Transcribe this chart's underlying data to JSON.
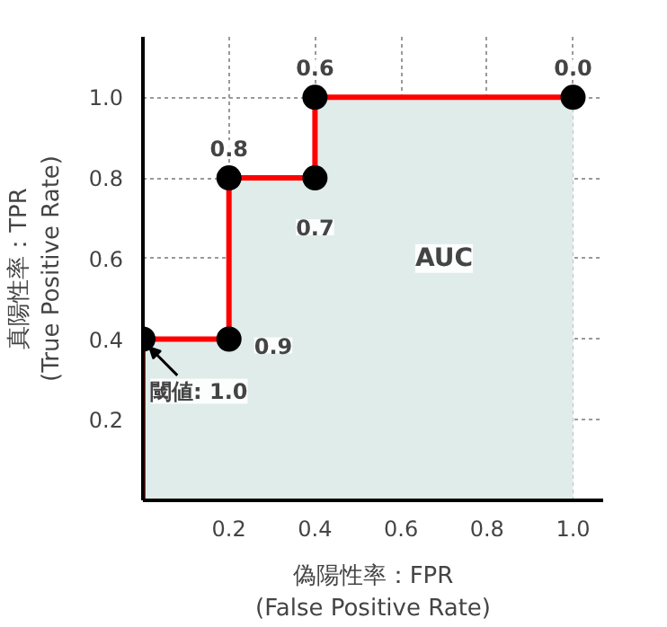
{
  "chart_data": {
    "type": "area",
    "xlabel": "偽陽性率：FPR\n(False Positive Rate)",
    "ylabel": "真陽性率：TPR\n(True Positive Rate)",
    "xlim": [
      0,
      1.07
    ],
    "ylim": [
      0,
      1.15
    ],
    "xticks": [
      0.2,
      0.4,
      0.6,
      0.8,
      {
        "value": 1.0,
        "label": "1.0"
      }
    ],
    "yticks": [
      0.2,
      0.4,
      0.6,
      0.8,
      {
        "value": 1.0,
        "label": "1.0"
      }
    ],
    "grid": true,
    "series": [
      {
        "color": "#ff0000",
        "x": [
          0,
          0,
          0.2,
          0.2,
          0.4,
          0.4,
          1.0
        ],
        "values": [
          0,
          0.4,
          0.4,
          0.8,
          0.8,
          1.0,
          1.0
        ]
      },
      {
        "type": "scatter",
        "color": "#000000",
        "marker": "circle",
        "x": [
          0,
          0.2,
          0.2,
          0.4,
          0.4,
          1.0
        ],
        "values": [
          0.4,
          0.4,
          0.8,
          0.8,
          1.0,
          1.0
        ]
      }
    ],
    "annotations": [
      {
        "text": "閾値: 1.0",
        "x": 0,
        "y": 0.4
      },
      {
        "text": "0.9",
        "x": 0.2,
        "y": 0.4
      },
      {
        "text": "0.8",
        "x": 0.2,
        "y": 0.8
      },
      {
        "text": "0.7",
        "x": 0.4,
        "y": 0.8
      },
      {
        "text": "0.6",
        "x": 0.4,
        "y": 1.0
      },
      {
        "text": "0.0",
        "x": 1.0,
        "y": 1.0
      },
      {
        "text": "AUC",
        "x": 0.7,
        "y": 0.6
      }
    ]
  }
}
